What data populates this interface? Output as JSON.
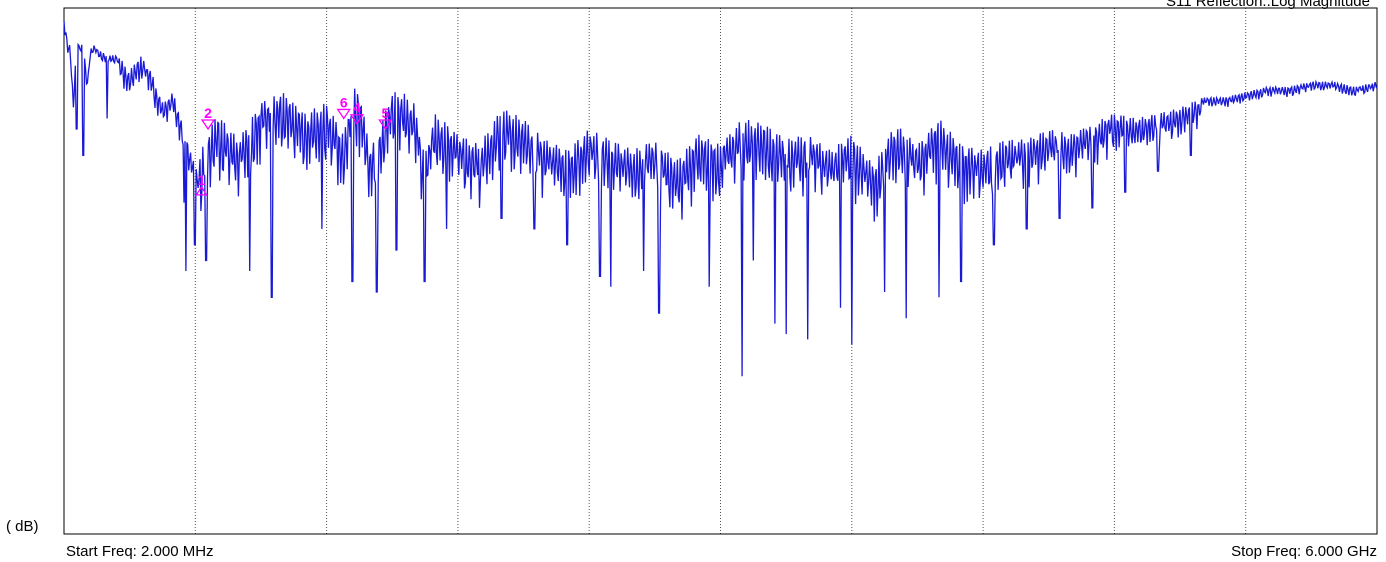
{
  "chart_data": {
    "type": "line",
    "title": "S11 Reflection..Log Magnitude",
    "ylabel": "( dB)",
    "xlabel": "",
    "start_freq_label": "Start Freq: 2.000 MHz",
    "stop_freq_label": "Stop Freq: 6.000 GHz",
    "x_unit": "GHz",
    "xlim": [
      0.002,
      6.0
    ],
    "ylim": [
      0,
      100
    ],
    "y_scale_note": "relative scale; no y tick values printed",
    "grid": "vertical dotted, 10 divisions",
    "trace_color": "#1a1ad6",
    "marker_color": "#ff00ff",
    "series": [
      {
        "x": [
          0.002,
          0.02,
          0.03,
          0.045,
          0.06,
          0.07,
          0.09,
          0.1,
          0.11,
          0.12,
          0.14,
          0.16,
          0.2,
          0.25,
          0.3,
          0.35,
          0.4,
          0.45,
          0.5,
          0.55,
          0.6,
          0.7,
          0.8,
          0.9,
          1.0,
          1.1,
          1.2,
          1.28,
          1.3,
          1.32,
          1.35,
          1.38,
          1.4,
          1.45,
          1.5,
          1.55,
          1.6,
          1.65,
          1.7,
          1.8,
          1.9,
          2.0,
          2.1,
          2.2,
          2.3,
          2.4,
          2.5,
          2.6,
          2.7,
          2.8,
          2.9,
          3.0,
          3.1,
          3.2,
          3.3,
          3.4,
          3.5,
          3.6,
          3.7,
          3.8,
          3.9,
          4.0,
          4.1,
          4.2,
          4.3,
          4.4,
          4.5,
          4.6,
          4.7,
          4.8,
          4.9,
          5.0,
          5.1,
          5.2,
          5.3,
          5.4,
          5.5,
          5.6,
          5.7,
          5.8,
          5.9,
          6.0
        ],
        "y": [
          98,
          93,
          93,
          82,
          95,
          93,
          93,
          89,
          86,
          92,
          93,
          92,
          91,
          91,
          88,
          91,
          88,
          82,
          84,
          77,
          70,
          80,
          75,
          82,
          84,
          80,
          82,
          76,
          80,
          85,
          84,
          78,
          73,
          78,
          84,
          84,
          82,
          72,
          80,
          76,
          74,
          81,
          79,
          75,
          73,
          77,
          75,
          73,
          75,
          71,
          76,
          74,
          79,
          78,
          75,
          76,
          73,
          76,
          70,
          78,
          74,
          79,
          74,
          73,
          75,
          75,
          77,
          76,
          78,
          80,
          79,
          80,
          81,
          83,
          83,
          84,
          85,
          85,
          86,
          86,
          85,
          86
        ]
      }
    ],
    "ripple_minima": [
      {
        "x": 0.06,
        "y": 77
      },
      {
        "x": 0.09,
        "y": 72
      },
      {
        "x": 0.2,
        "y": 79
      },
      {
        "x": 0.55,
        "y": 63
      },
      {
        "x": 0.56,
        "y": 50
      },
      {
        "x": 0.6,
        "y": 55
      },
      {
        "x": 0.65,
        "y": 52
      },
      {
        "x": 0.85,
        "y": 50
      },
      {
        "x": 0.95,
        "y": 45
      },
      {
        "x": 1.18,
        "y": 58
      },
      {
        "x": 1.32,
        "y": 48
      },
      {
        "x": 1.43,
        "y": 46
      },
      {
        "x": 1.52,
        "y": 54
      },
      {
        "x": 1.65,
        "y": 48
      },
      {
        "x": 1.75,
        "y": 58
      },
      {
        "x": 1.9,
        "y": 62
      },
      {
        "x": 2.0,
        "y": 60
      },
      {
        "x": 2.15,
        "y": 58
      },
      {
        "x": 2.3,
        "y": 55
      },
      {
        "x": 2.45,
        "y": 49
      },
      {
        "x": 2.5,
        "y": 47
      },
      {
        "x": 2.65,
        "y": 50
      },
      {
        "x": 2.72,
        "y": 42
      },
      {
        "x": 2.95,
        "y": 47
      },
      {
        "x": 3.1,
        "y": 30
      },
      {
        "x": 3.15,
        "y": 52
      },
      {
        "x": 3.25,
        "y": 40
      },
      {
        "x": 3.3,
        "y": 38
      },
      {
        "x": 3.4,
        "y": 37
      },
      {
        "x": 3.55,
        "y": 43
      },
      {
        "x": 3.6,
        "y": 36
      },
      {
        "x": 3.75,
        "y": 46
      },
      {
        "x": 3.85,
        "y": 41
      },
      {
        "x": 4.0,
        "y": 45
      },
      {
        "x": 4.1,
        "y": 48
      },
      {
        "x": 4.25,
        "y": 55
      },
      {
        "x": 4.4,
        "y": 58
      },
      {
        "x": 4.55,
        "y": 60
      },
      {
        "x": 4.7,
        "y": 62
      },
      {
        "x": 4.85,
        "y": 65
      },
      {
        "x": 5.0,
        "y": 69
      },
      {
        "x": 5.15,
        "y": 72
      }
    ],
    "markers": [
      {
        "label": "1",
        "x": 0.63,
        "y": 66,
        "direction": "up"
      },
      {
        "label": "2",
        "x": 0.66,
        "y": 77,
        "direction": "down"
      },
      {
        "label": "6",
        "x": 1.28,
        "y": 79,
        "direction": "down"
      },
      {
        "label": "4",
        "x": 1.34,
        "y": 78,
        "direction": "down"
      },
      {
        "label": "5",
        "x": 1.47,
        "y": 77,
        "direction": "down"
      }
    ]
  }
}
